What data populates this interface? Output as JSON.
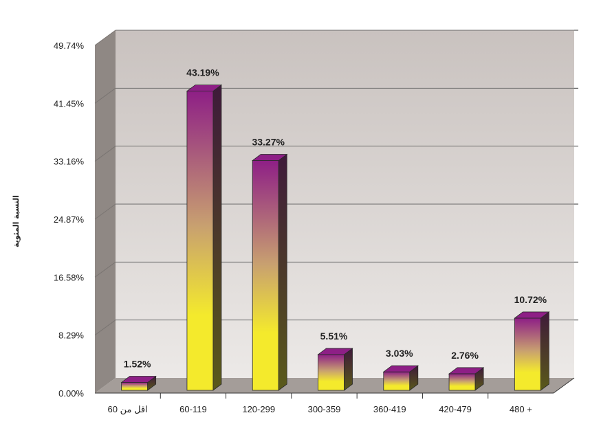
{
  "chart_data": {
    "type": "bar",
    "title": "",
    "xlabel": "",
    "ylabel": "النسبة المئوية",
    "categories": [
      "اقل من 60",
      "60-119",
      "120-299",
      "300-359",
      "360-419",
      "420-479",
      "480 +"
    ],
    "values": [
      1.52,
      43.19,
      33.27,
      5.51,
      3.03,
      2.76,
      10.72
    ],
    "data_labels": [
      "1.52%",
      "43.19%",
      "33.27%",
      "5.51%",
      "3.03%",
      "2.76%",
      "10.72%"
    ],
    "yticks": [
      "0.00%",
      "8.29%",
      "16.58%",
      "24.87%",
      "33.16%",
      "41.45%",
      "49.74%"
    ],
    "ylim": [
      0,
      49.74
    ],
    "grid": true,
    "legend": "none",
    "colors": {
      "bar_top": "#8e1f86",
      "bar_mid": "#c8a070",
      "bar_bottom": "#f4ea2c",
      "wall_top": "#c9c2bf",
      "wall_bottom": "#ece9e7",
      "side_wall": "#8f8884",
      "floor": "#a49d99",
      "gridline": "#6b6b6b"
    }
  }
}
